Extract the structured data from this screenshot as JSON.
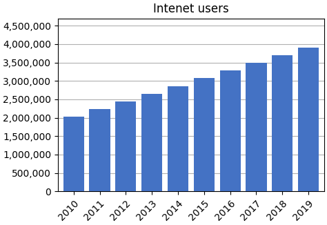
{
  "chart_data": {
    "type": "bar",
    "title": "Intenet users",
    "categories": [
      "2010",
      "2011",
      "2012",
      "2013",
      "2014",
      "2015",
      "2016",
      "2017",
      "2018",
      "2019"
    ],
    "values": [
      2035000,
      2242000,
      2449000,
      2656000,
      2863000,
      3070000,
      3277000,
      3484000,
      3691000,
      3898000
    ],
    "color": "#4472C4",
    "ylim": [
      0,
      4700000
    ],
    "yticks": [
      0,
      {
        "value": 500000,
        "label": "500,000"
      },
      {
        "value": 1000000,
        "label": "1,000,000"
      },
      {
        "value": 1500000,
        "label": "1,500,000"
      },
      {
        "value": 2000000,
        "label": "2,000,000"
      },
      {
        "value": 2500000,
        "label": "2,500,000"
      },
      {
        "value": 3000000,
        "label": "3,000,000"
      },
      {
        "value": 3500000,
        "label": "3,500,000"
      },
      {
        "value": 4000000,
        "label": "4,000,000"
      },
      {
        "value": 4500000,
        "label": "4,500,000"
      }
    ],
    "grid": true
  }
}
